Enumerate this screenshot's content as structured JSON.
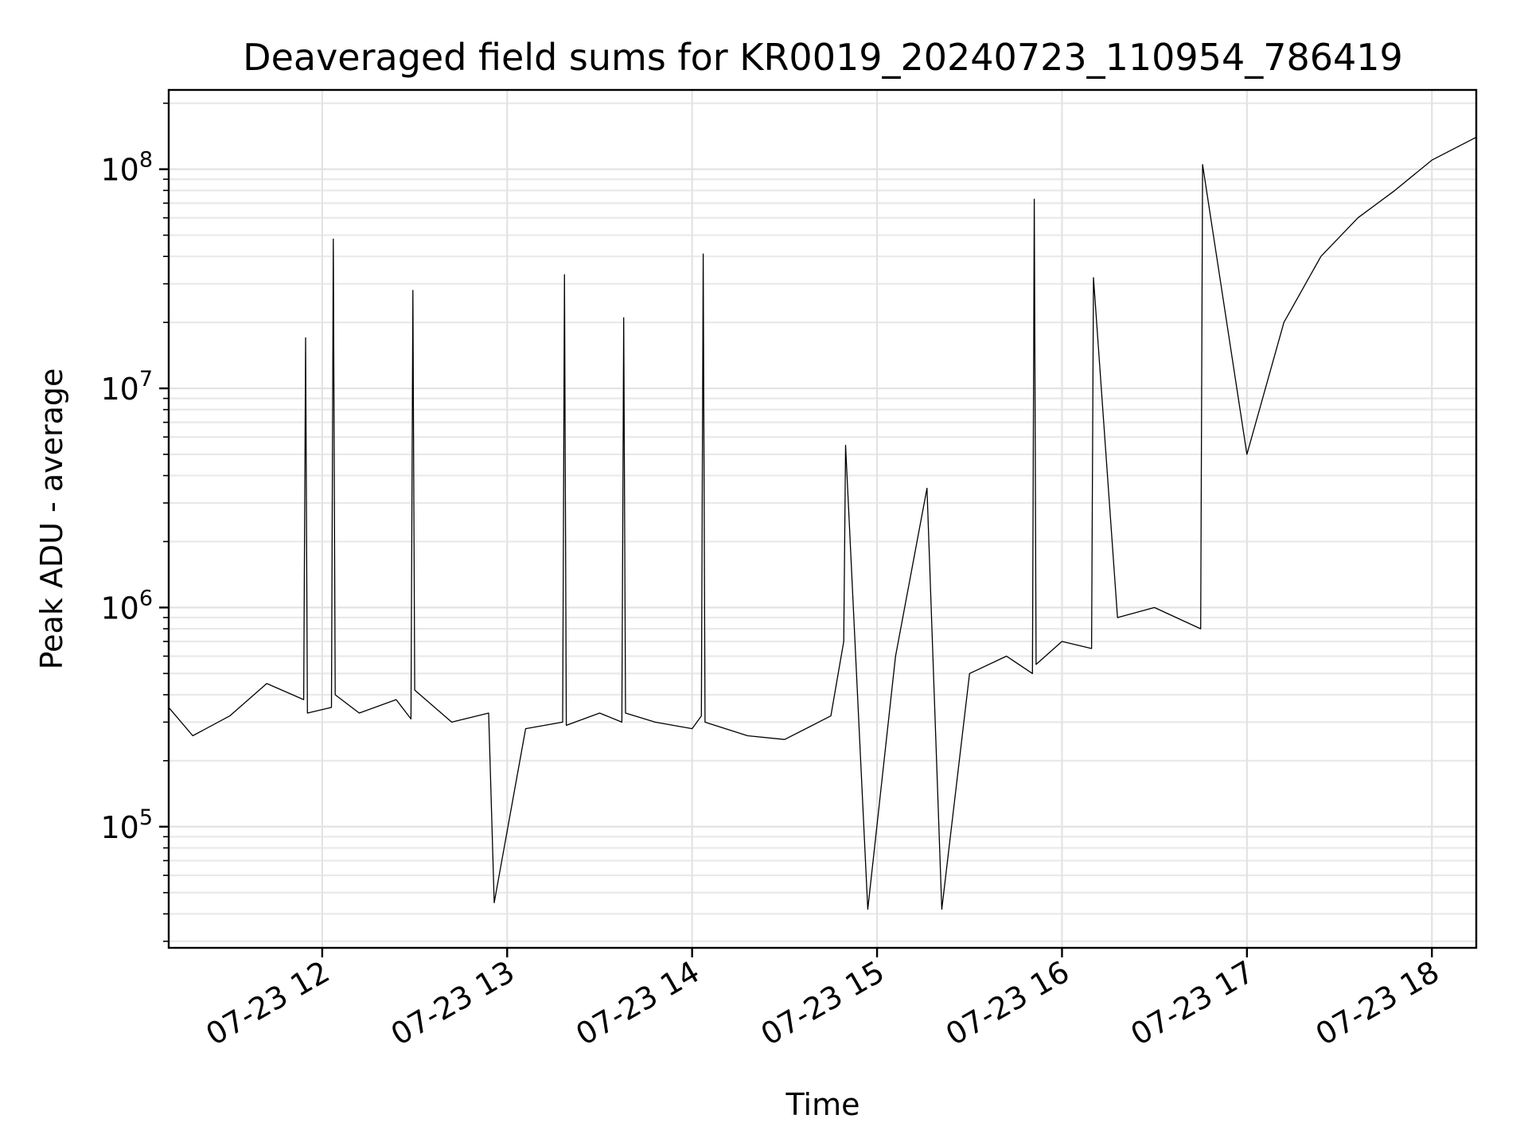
{
  "chart_data": {
    "type": "line",
    "title": "Deaveraged field sums for KR0019_20240723_110954_786419",
    "xlabel": "Time",
    "ylabel": "Peak ADU - average",
    "yscale": "log",
    "grid": true,
    "xlim_hours": [
      11.17,
      18.24
    ],
    "ylim": [
      28000,
      230000000
    ],
    "x_ticks": [
      {
        "hour": 12,
        "label": "07-23 12"
      },
      {
        "hour": 13,
        "label": "07-23 13"
      },
      {
        "hour": 14,
        "label": "07-23 14"
      },
      {
        "hour": 15,
        "label": "07-23 15"
      },
      {
        "hour": 16,
        "label": "07-23 16"
      },
      {
        "hour": 17,
        "label": "07-23 17"
      },
      {
        "hour": 18,
        "label": "07-23 18"
      }
    ],
    "y_ticks": [
      {
        "value": 100000,
        "base": "10",
        "exp": "5"
      },
      {
        "value": 1000000,
        "base": "10",
        "exp": "6"
      },
      {
        "value": 10000000,
        "base": "10",
        "exp": "7"
      },
      {
        "value": 100000000,
        "base": "10",
        "exp": "8"
      }
    ],
    "line_color": "#000000",
    "series": [
      {
        "x_hours": [
          11.17,
          11.3,
          11.5,
          11.7,
          11.9,
          11.91,
          11.92,
          12.05,
          12.06,
          12.07,
          12.2,
          12.4,
          12.48,
          12.49,
          12.5,
          12.7,
          12.9,
          12.93,
          13.1,
          13.3,
          13.31,
          13.32,
          13.5,
          13.62,
          13.63,
          13.64,
          13.8,
          14.0,
          14.05,
          14.06,
          14.07,
          14.3,
          14.5,
          14.75,
          14.82,
          14.83,
          14.95,
          15.1,
          15.27,
          15.35,
          15.5,
          15.7,
          15.84,
          15.85,
          15.86,
          16.0,
          16.16,
          16.17,
          16.3,
          16.5,
          16.75,
          16.76,
          17.0,
          17.2,
          17.4,
          17.6,
          17.8,
          18.0,
          18.24
        ],
        "y": [
          350000,
          260000,
          320000,
          450000,
          380000,
          17000000,
          330000,
          350000,
          48000000,
          400000,
          330000,
          380000,
          310000,
          28000000,
          420000,
          300000,
          330000,
          45000,
          280000,
          300000,
          33000000,
          290000,
          330000,
          300000,
          21000000,
          330000,
          300000,
          280000,
          320000,
          41000000,
          300000,
          260000,
          250000,
          320000,
          700000,
          5500000,
          42000,
          600000,
          3500000,
          42000,
          500000,
          600000,
          500000,
          73000000,
          550000,
          700000,
          650000,
          32000000,
          900000,
          1000000,
          800000,
          105000000,
          5000000,
          20000000,
          40000000,
          60000000,
          80000000,
          110000000,
          140000000
        ]
      }
    ]
  }
}
